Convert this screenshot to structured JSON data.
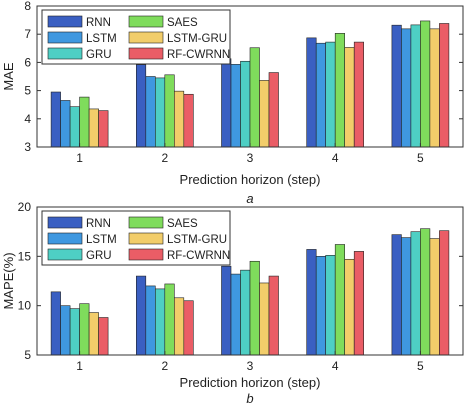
{
  "colors": {
    "RNN": "#3a5fc2",
    "LSTM": "#3f98e0",
    "GRU": "#4ecfc4",
    "SAES": "#7fdc5c",
    "LSTM-GRU": "#f2cd6a",
    "RF-CWRNN": "#ea5d66"
  },
  "chart_data": [
    {
      "type": "bar",
      "panel_label": "a",
      "xlabel": "Prediction horizon (step)",
      "ylabel": "MAE",
      "categories": [
        "1",
        "2",
        "3",
        "4",
        "5"
      ],
      "ylim": [
        3,
        8
      ],
      "yticks": [
        "3",
        "4",
        "5",
        "6",
        "7",
        "8"
      ],
      "legend_position": "top-left",
      "legend_order": [
        "RNN",
        "SAES",
        "LSTM",
        "LSTM-GRU",
        "GRU",
        "RF-CWRNN"
      ],
      "series": [
        {
          "name": "RNN",
          "values": [
            4.95,
            5.92,
            6.13,
            6.87,
            7.32
          ]
        },
        {
          "name": "LSTM",
          "values": [
            4.65,
            5.5,
            5.93,
            6.68,
            7.19
          ]
        },
        {
          "name": "GRU",
          "values": [
            4.43,
            5.45,
            6.04,
            6.72,
            7.33
          ]
        },
        {
          "name": "SAES",
          "values": [
            4.77,
            5.56,
            6.52,
            7.03,
            7.47
          ]
        },
        {
          "name": "LSTM-GRU",
          "values": [
            4.35,
            4.98,
            5.36,
            6.53,
            7.19
          ]
        },
        {
          "name": "RF-CWRNN",
          "values": [
            4.29,
            4.87,
            5.64,
            6.72,
            7.38
          ]
        }
      ]
    },
    {
      "type": "bar",
      "panel_label": "b",
      "xlabel": "Prediction horizon (step)",
      "ylabel": "MAPE(%)",
      "categories": [
        "1",
        "2",
        "3",
        "4",
        "5"
      ],
      "ylim": [
        5,
        20
      ],
      "yticks": [
        "5",
        "10",
        "15",
        "20"
      ],
      "legend_position": "top-left",
      "legend_order": [
        "RNN",
        "SAES",
        "LSTM",
        "LSTM-GRU",
        "GRU",
        "RF-CWRNN"
      ],
      "series": [
        {
          "name": "RNN",
          "values": [
            11.4,
            13.0,
            14.0,
            15.7,
            17.2
          ]
        },
        {
          "name": "LSTM",
          "values": [
            10.0,
            12.0,
            13.2,
            15.0,
            16.9
          ]
        },
        {
          "name": "GRU",
          "values": [
            9.7,
            11.7,
            13.6,
            15.1,
            17.5
          ]
        },
        {
          "name": "SAES",
          "values": [
            10.2,
            12.2,
            14.5,
            16.2,
            17.8
          ]
        },
        {
          "name": "LSTM-GRU",
          "values": [
            9.3,
            10.8,
            12.3,
            14.7,
            16.8
          ]
        },
        {
          "name": "RF-CWRNN",
          "values": [
            8.8,
            10.5,
            13.0,
            15.5,
            17.6
          ]
        }
      ]
    }
  ]
}
